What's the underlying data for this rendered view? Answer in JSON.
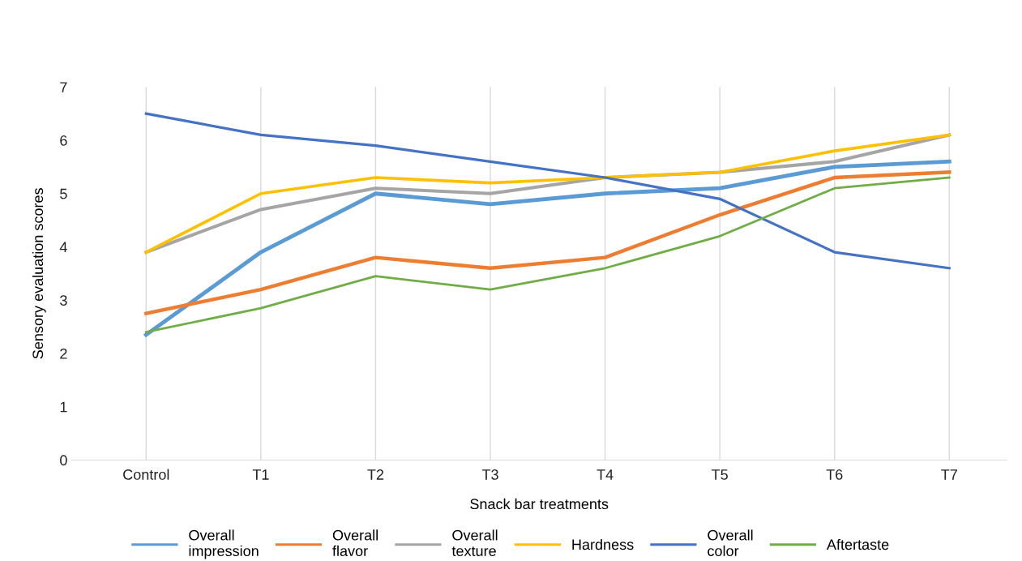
{
  "chart_data": {
    "type": "line",
    "xlabel": "Snack bar treatments",
    "ylabel": "Sensory evaluation scores",
    "categories": [
      "Control",
      "T1",
      "T2",
      "T3",
      "T4",
      "T5",
      "T6",
      "T7"
    ],
    "series": [
      {
        "name": "Overall\nimpression",
        "color": "#5b9bd5",
        "values": [
          2.35,
          3.9,
          5.0,
          4.8,
          5.0,
          5.1,
          5.5,
          5.6
        ]
      },
      {
        "name": "Overall\nflavor",
        "color": "#ed7d31",
        "values": [
          2.75,
          3.2,
          3.8,
          3.6,
          3.8,
          4.6,
          5.3,
          5.4
        ]
      },
      {
        "name": "Overall\ntexture",
        "color": "#a5a5a5",
        "values": [
          3.9,
          4.7,
          5.1,
          5.0,
          5.3,
          5.4,
          5.6,
          6.1
        ]
      },
      {
        "name": "Hardness",
        "color": "#ffc000",
        "values": [
          3.9,
          5.0,
          5.3,
          5.2,
          5.3,
          5.4,
          5.8,
          6.1
        ]
      },
      {
        "name": "Overall\ncolor",
        "color": "#4472c4",
        "values": [
          6.5,
          6.1,
          5.9,
          5.6,
          5.3,
          4.9,
          3.9,
          3.6
        ]
      },
      {
        "name": "Aftertaste",
        "color": "#70ad47",
        "values": [
          2.4,
          2.85,
          3.45,
          3.2,
          3.6,
          4.2,
          5.1,
          5.3
        ]
      }
    ],
    "ylim": [
      0,
      7
    ],
    "yticks": [
      0,
      1,
      2,
      3,
      4,
      5,
      6,
      7
    ],
    "grid": "x",
    "legend": "bottom",
    "marker": "none",
    "line_style": "solid"
  }
}
